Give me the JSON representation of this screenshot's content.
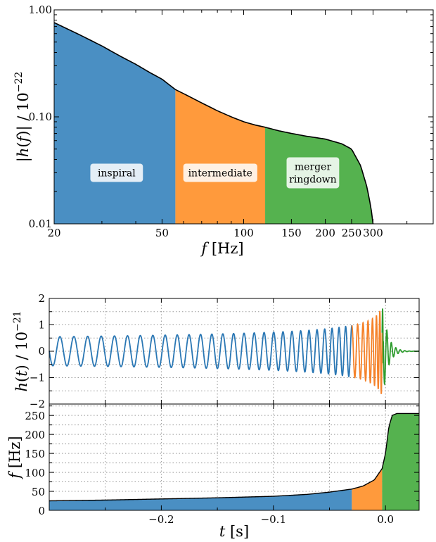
{
  "colors": {
    "inspiral": "#4A8FC3",
    "intermediate": "#FF9A3C",
    "merger": "#55B24F",
    "line_inspiral": "#2A77B4",
    "line_intermediate": "#F5822A",
    "line_merger": "#2E9C2E",
    "frame": "#000000",
    "grid": "#999999"
  },
  "chart_data": [
    {
      "type": "area",
      "xlabel": "f [Hz]",
      "ylabel": "|h(f)| / 10^-22",
      "x_scale": "log",
      "y_scale": "log",
      "xlim": [
        20,
        500
      ],
      "ylim": [
        0.01,
        1.0
      ],
      "grid": false,
      "xticks": [
        {
          "value": 20,
          "label": "20"
        },
        {
          "value": 50,
          "label": "50"
        },
        {
          "value": 100,
          "label": "100"
        },
        {
          "value": 150,
          "label": "150"
        },
        {
          "value": 200,
          "label": "200"
        },
        {
          "value": 250,
          "label": "250"
        },
        {
          "value": 300,
          "label": "300"
        }
      ],
      "yticks": [
        {
          "value": 0.01,
          "label": "0.01"
        },
        {
          "value": 0.1,
          "label": "0.10"
        },
        {
          "value": 1.0,
          "label": "1.00"
        }
      ],
      "curve": {
        "f": [
          20,
          25,
          30,
          35,
          40,
          45,
          50,
          56,
          60,
          70,
          80,
          90,
          100,
          110,
          120,
          135,
          150,
          170,
          200,
          230,
          250,
          270,
          285,
          295,
          300
        ],
        "h": [
          0.76,
          0.58,
          0.46,
          0.37,
          0.31,
          0.26,
          0.225,
          0.18,
          0.165,
          0.135,
          0.114,
          0.1,
          0.09,
          0.084,
          0.08,
          0.074,
          0.07,
          0.066,
          0.062,
          0.056,
          0.05,
          0.035,
          0.022,
          0.014,
          0.01
        ]
      },
      "regions": [
        {
          "name": "inspiral",
          "label": "inspiral",
          "f_range": [
            20,
            56
          ],
          "label_f": 34,
          "label_h": 0.03
        },
        {
          "name": "intermediate",
          "label": "intermediate",
          "f_range": [
            56,
            120
          ],
          "label_f": 82,
          "label_h": 0.03
        },
        {
          "name": "merger",
          "label": "merger\nringdown",
          "f_range": [
            120,
            300
          ],
          "label_f": 180,
          "label_h": 0.03
        }
      ]
    },
    {
      "type": "line",
      "xlabel": "",
      "ylabel": "h(t) / 10^-21",
      "xlim": [
        -0.3,
        0.03
      ],
      "ylim": [
        -2,
        2
      ],
      "grid": true,
      "yticks": [
        {
          "value": -2,
          "label": "−2"
        },
        {
          "value": -1,
          "label": "−1"
        },
        {
          "value": 0,
          "label": "0"
        },
        {
          "value": 1,
          "label": "1"
        },
        {
          "value": 2,
          "label": "2"
        }
      ],
      "segments": [
        {
          "name": "inspiral",
          "t_range": [
            -0.3,
            -0.03
          ]
        },
        {
          "name": "intermediate",
          "t_range": [
            -0.03,
            -0.003
          ]
        },
        {
          "name": "merger",
          "t_range": [
            -0.003,
            0.03
          ]
        }
      ],
      "waveform_notes": {
        "start_amplitude": 0.55,
        "peak_amplitude": 1.62,
        "peak_time": -0.002,
        "cycles_between_ticks": 5
      }
    },
    {
      "type": "area",
      "xlabel": "t [s]",
      "ylabel": "f [Hz]",
      "xlim": [
        -0.3,
        0.03
      ],
      "ylim": [
        0,
        280
      ],
      "grid": true,
      "xticks": [
        {
          "value": -0.2,
          "label": "−0.2"
        },
        {
          "value": -0.1,
          "label": "−0.1"
        },
        {
          "value": 0.0,
          "label": "0.0"
        }
      ],
      "yticks": [
        {
          "value": 0,
          "label": "0"
        },
        {
          "value": 50,
          "label": "50"
        },
        {
          "value": 100,
          "label": "100"
        },
        {
          "value": 150,
          "label": "150"
        },
        {
          "value": 200,
          "label": "200"
        },
        {
          "value": 250,
          "label": "250"
        }
      ],
      "curve": {
        "t": [
          -0.3,
          -0.25,
          -0.2,
          -0.15,
          -0.1,
          -0.07,
          -0.05,
          -0.03,
          -0.02,
          -0.01,
          -0.003,
          0.0,
          0.003,
          0.006,
          0.01,
          0.03
        ],
        "f": [
          25,
          27,
          30,
          33,
          37,
          42,
          48,
          56,
          64,
          80,
          110,
          150,
          220,
          250,
          255,
          255
        ]
      },
      "regions": [
        {
          "name": "inspiral",
          "t_range": [
            -0.3,
            -0.03
          ]
        },
        {
          "name": "intermediate",
          "t_range": [
            -0.03,
            -0.003
          ]
        },
        {
          "name": "merger",
          "t_range": [
            -0.003,
            0.03
          ]
        }
      ]
    }
  ]
}
